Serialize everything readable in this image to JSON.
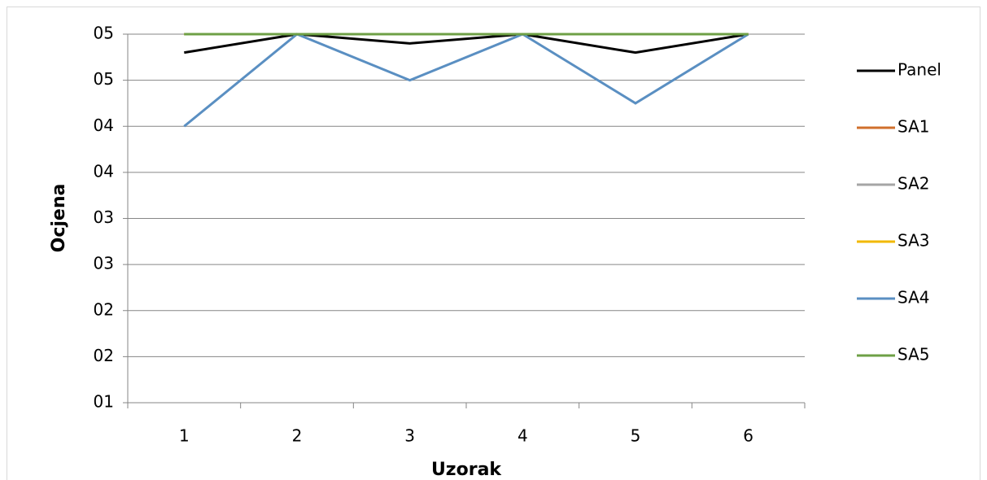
{
  "chart_data": {
    "type": "line",
    "x_label": "Uzorak",
    "y_label": "Ocjena",
    "categories": [
      "1",
      "2",
      "3",
      "4",
      "5",
      "6"
    ],
    "series": [
      {
        "name": "Panel",
        "color": "#000000",
        "values": [
          4.8,
          5,
          4.9,
          5,
          4.8,
          5
        ]
      },
      {
        "name": "SA1",
        "color": "#d0702c",
        "values": [
          5,
          5,
          5,
          5,
          5,
          5
        ]
      },
      {
        "name": "SA2",
        "color": "#a5a5a5",
        "values": [
          5,
          5,
          5,
          5,
          5,
          5
        ]
      },
      {
        "name": "SA3",
        "color": "#f2b800",
        "values": [
          5,
          5,
          5,
          5,
          5,
          5
        ]
      },
      {
        "name": "SA4",
        "color": "#5a8fc2",
        "values": [
          4,
          5,
          4.5,
          5,
          4.25,
          5
        ]
      },
      {
        "name": "SA5",
        "color": "#6ea046",
        "values": [
          5,
          5,
          5,
          5,
          5,
          5
        ]
      }
    ],
    "ylim": [
      1,
      5
    ],
    "yticks": [
      {
        "value": 1,
        "label": "01"
      },
      {
        "value": 1.5,
        "label": "02"
      },
      {
        "value": 2,
        "label": "02"
      },
      {
        "value": 2.5,
        "label": "03"
      },
      {
        "value": 3,
        "label": "03"
      },
      {
        "value": 3.5,
        "label": "04"
      },
      {
        "value": 4,
        "label": "04"
      },
      {
        "value": 4.5,
        "label": "05"
      },
      {
        "value": 5,
        "label": "05"
      }
    ],
    "grid": true,
    "legend": "right"
  }
}
